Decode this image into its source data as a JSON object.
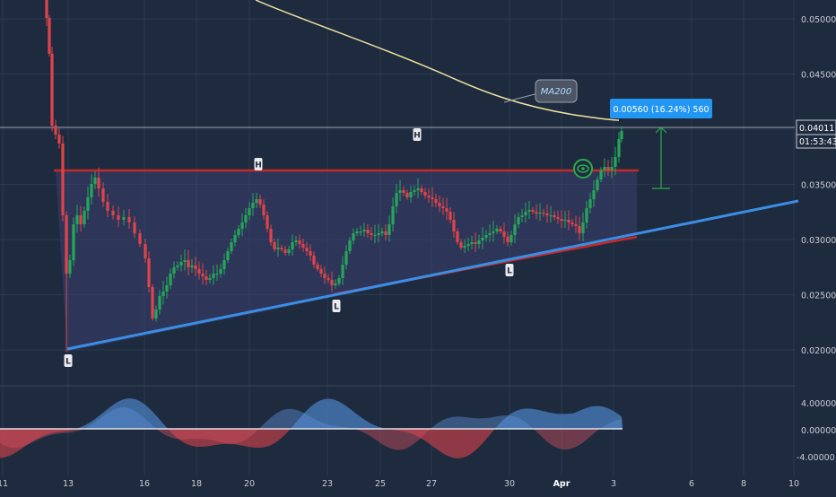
{
  "chart_data": [
    {
      "type": "candlestick",
      "title": "",
      "y_axis_ticks": [
        "0.05000",
        "0.04500",
        "0.04000",
        "0.03500",
        "0.03000",
        "0.02500",
        "0.02000"
      ],
      "ylim": [
        0.0185,
        0.0515
      ],
      "x_axis_ticks": [
        "11",
        "13",
        "16",
        "18",
        "20",
        "23",
        "25",
        "27",
        "30",
        "Apr",
        "3",
        "6",
        "8",
        "10"
      ],
      "last_price_label": "0.04011",
      "countdown_label": "01:53:43",
      "measure_label": "0.00560 (16.24%) 560",
      "ma_label": "MA200",
      "pattern_labels": [
        "H",
        "H",
        "L",
        "L",
        "L"
      ],
      "series": [
        {
          "name": "MA200",
          "color": "#f0e3a0"
        },
        {
          "name": "Resistance",
          "color": "#d32f2f"
        },
        {
          "name": "Support",
          "color": "#2e86de"
        }
      ],
      "colors": {
        "up": "#26a65b",
        "down": "#e0444a",
        "background": "#1e2b3e",
        "label": "#2196f3"
      }
    },
    {
      "type": "area",
      "title": "",
      "y_axis_ticks": [
        "4.00000",
        "0.00000",
        "-4.00000"
      ],
      "ylim": [
        -5,
        5
      ],
      "colors": {
        "positive": "#4a7fc0",
        "negative": "#c0404a"
      }
    }
  ]
}
